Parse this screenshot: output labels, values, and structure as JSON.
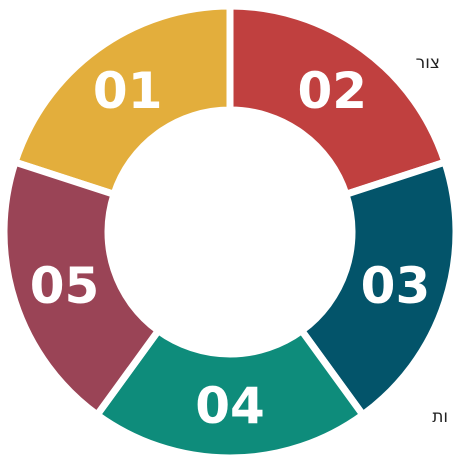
{
  "segments": [
    {
      "label": "01",
      "color": "#e3ae3c"
    },
    {
      "label": "02",
      "color": "#c0403f"
    },
    {
      "label": "03",
      "color": "#03546a"
    },
    {
      "label": "04",
      "color": "#0e8c7b"
    },
    {
      "label": "05",
      "color": "#9a4456"
    }
  ],
  "side_texts": [
    "צור",
    "ות"
  ]
}
